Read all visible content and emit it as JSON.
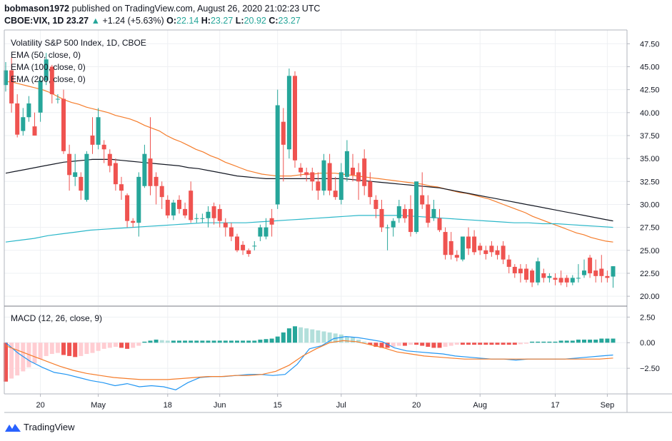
{
  "header": {
    "author": "bobmason1972",
    "published_text": "published on TradingView.com, August 26, 2020 21:02:23 UTC",
    "symbol": "CBOE:VIX, 1D",
    "last": "23.27",
    "change_arrow": "▲",
    "change": "+1.24 (+5.63%)",
    "o_label": "O:",
    "o_value": "22.14",
    "h_label": "H:",
    "h_value": "23.27",
    "l_label": "L:",
    "l_value": "20.92",
    "c_label": "C:",
    "c_value": "23.27"
  },
  "legend": {
    "title": "Volatility S&P 500 Index, 1D, CBOE",
    "ema50": "EMA (50, close, 0)",
    "ema100": "EMA (100, close, 0)",
    "ema200": "EMA (200, close, 0)",
    "macd": "MACD (12, 26, close, 9)"
  },
  "brand": {
    "label": "TradingView",
    "icon": "tradingview-logo-icon"
  },
  "colors": {
    "up": "#26a69a",
    "down": "#ef5350",
    "ema50": "#f57c2a",
    "ema100": "#131722",
    "ema200": "#2bb7c9",
    "macd_line": "#2196f3",
    "signal_line": "#f57c2a",
    "hist_pos_strong": "#26a69a",
    "hist_pos_weak": "#b2dfdb",
    "hist_neg_strong": "#ef5350",
    "hist_neg_weak": "#ffcdd2",
    "grid": "#eef0f3",
    "axis": "#b2b5be"
  },
  "chart_data": [
    {
      "type": "candlestick",
      "title": "Volatility S&P 500 Index, 1D, CBOE",
      "ylim": [
        19,
        49
      ],
      "y_ticks": [
        20.0,
        22.5,
        25.0,
        27.5,
        30.0,
        32.5,
        35.0,
        37.5,
        40.0,
        42.5,
        45.0,
        47.5
      ],
      "y_tick_labels": [
        "20.00",
        "22.50",
        "25.00",
        "27.50",
        "30.00",
        "32.50",
        "35.00",
        "37.50",
        "40.00",
        "42.50",
        "45.00",
        "47.50"
      ],
      "x_tick_labels": [
        "20",
        "May",
        "18",
        "Jun",
        "15",
        "Jul",
        "20",
        "Aug",
        "17",
        "Sep"
      ],
      "x_tick_bar_index": [
        6,
        16,
        28,
        37,
        47,
        58,
        71,
        82,
        95,
        104
      ],
      "grid": true,
      "candles": [
        [
          43,
          44.6,
          45.5,
          42.3
        ],
        [
          44.6,
          41,
          46,
          40
        ],
        [
          41,
          37.6,
          42,
          37.3
        ],
        [
          38,
          39.5,
          40.5,
          37.5
        ],
        [
          39.5,
          41,
          41.8,
          39
        ],
        [
          38.5,
          37.5,
          40,
          37.5
        ],
        [
          40,
          43.5,
          44,
          39
        ],
        [
          43.5,
          45.8,
          46.5,
          43
        ],
        [
          45,
          42,
          45.2,
          41
        ],
        [
          41.5,
          41.5,
          42,
          41
        ],
        [
          41.5,
          35.8,
          42.5,
          35.5
        ],
        [
          35.5,
          33.2,
          36.5,
          31.5
        ],
        [
          33,
          33.5,
          35.5,
          32
        ],
        [
          33,
          31.5,
          33.5,
          30.5
        ],
        [
          30.5,
          35.5,
          35.8,
          30.3
        ],
        [
          37.5,
          36.5,
          39.5,
          35.5
        ],
        [
          36.5,
          39.5,
          40.5,
          36
        ],
        [
          36.5,
          36,
          37,
          34.5
        ],
        [
          35.5,
          34.2,
          36,
          33.5
        ],
        [
          34.5,
          32.2,
          35,
          31.5
        ],
        [
          32.2,
          31.5,
          33,
          30.5
        ],
        [
          31,
          28.2,
          31.2,
          27.5
        ],
        [
          28.2,
          28,
          28.5,
          27.5
        ],
        [
          28,
          33,
          33.5,
          26.5
        ],
        [
          32,
          35.5,
          36.5,
          31.8
        ],
        [
          35,
          32,
          39.5,
          31
        ],
        [
          33,
          32,
          33.5,
          30
        ],
        [
          32,
          30.8,
          32.5,
          29.5
        ],
        [
          30.5,
          28.8,
          31,
          28.5
        ],
        [
          28.8,
          30.2,
          30.5,
          28.3
        ],
        [
          30.5,
          29.5,
          31,
          29
        ],
        [
          29.5,
          28.8,
          30.2,
          28.5
        ],
        [
          31.5,
          28.3,
          32.5,
          28
        ],
        [
          28.5,
          28.5,
          29,
          28
        ],
        [
          28.5,
          28.5,
          29,
          28
        ],
        [
          28.5,
          29.2,
          29.8,
          27.5
        ],
        [
          29.8,
          28.5,
          30.2,
          27.8
        ],
        [
          29.5,
          28.2,
          30,
          27.5
        ],
        [
          28,
          27.5,
          28.5,
          26.5
        ],
        [
          27.5,
          26.5,
          28,
          26
        ],
        [
          26.5,
          25,
          26.8,
          24.8
        ],
        [
          25.6,
          25,
          26,
          24.5
        ],
        [
          25,
          24.6,
          25.2,
          24.3
        ],
        [
          25.5,
          25.5,
          26,
          25
        ],
        [
          26.5,
          27.5,
          27.8,
          26
        ],
        [
          26.5,
          27.5,
          28.5,
          26.2
        ],
        [
          28.5,
          27.8,
          29.5,
          26.5
        ],
        [
          30,
          40.8,
          42.5,
          29.5
        ],
        [
          39,
          36.5,
          40.5,
          32.5
        ],
        [
          36,
          44,
          44.8,
          35
        ],
        [
          44,
          34.8,
          44.5,
          34
        ],
        [
          34,
          33.5,
          34.5,
          33
        ],
        [
          33.5,
          33.2,
          34,
          32.5
        ],
        [
          33.5,
          32.5,
          34,
          31.5
        ],
        [
          32.5,
          31.5,
          33.5,
          30.5
        ],
        [
          31.5,
          34.8,
          35.5,
          31
        ],
        [
          34.5,
          31.5,
          35.5,
          31
        ],
        [
          31.5,
          30.8,
          33,
          30.5
        ],
        [
          30.5,
          33.5,
          34.5,
          30
        ],
        [
          33,
          35.8,
          37,
          32.5
        ],
        [
          34,
          33.2,
          35.5,
          32.5
        ],
        [
          33.5,
          32.5,
          34.5,
          30.5
        ],
        [
          35,
          32,
          36,
          31
        ],
        [
          32.5,
          30.8,
          33.5,
          30
        ],
        [
          30.5,
          29.5,
          31,
          28.5
        ],
        [
          29.5,
          27.5,
          30.5,
          27
        ],
        [
          27.5,
          27.5,
          27.8,
          25
        ],
        [
          27.5,
          28.2,
          28.5,
          26.5
        ],
        [
          28.5,
          29.8,
          30.5,
          28
        ],
        [
          29.5,
          28.5,
          30,
          28
        ],
        [
          29.5,
          27,
          31,
          26.5
        ],
        [
          27,
          32.5,
          32.5,
          26.8
        ],
        [
          31,
          30,
          33.5,
          29.5
        ],
        [
          30,
          28,
          31,
          27.5
        ],
        [
          28.5,
          29.5,
          30.5,
          28.2
        ],
        [
          28.5,
          27.2,
          29.5,
          27
        ],
        [
          27,
          24.5,
          27.5,
          24
        ],
        [
          26,
          24.5,
          27,
          24
        ],
        [
          24.5,
          24.2,
          25,
          23.8
        ],
        [
          24,
          26.5,
          26.5,
          23.8
        ],
        [
          26.5,
          25.2,
          27.5,
          24.5
        ],
        [
          26.5,
          24.8,
          27.2,
          24.5
        ],
        [
          25.5,
          25,
          25.8,
          24.5
        ],
        [
          25,
          24.6,
          25.5,
          24
        ],
        [
          25.5,
          24.8,
          26,
          24.3
        ],
        [
          25,
          24.5,
          25.5,
          24
        ],
        [
          25.5,
          24,
          26,
          23.5
        ],
        [
          24,
          23.2,
          24.5,
          22.5
        ],
        [
          23.2,
          22.5,
          23.5,
          22
        ],
        [
          23,
          22.5,
          23.5,
          21.5
        ],
        [
          23,
          21.8,
          23.5,
          21.5
        ],
        [
          22.8,
          21.5,
          23,
          21
        ],
        [
          21.5,
          23.8,
          24.2,
          21.2
        ],
        [
          22.5,
          22,
          23,
          21.5
        ],
        [
          22,
          22.2,
          22.5,
          21.5
        ],
        [
          22,
          21.8,
          22.5,
          21.2
        ],
        [
          22,
          21.5,
          22.8,
          21.2
        ],
        [
          22,
          21.5,
          22.3,
          21
        ],
        [
          21.5,
          22,
          22.3,
          21.2
        ],
        [
          22,
          22,
          23.5,
          21.5
        ],
        [
          22.3,
          22.8,
          24,
          22
        ],
        [
          24.2,
          22.5,
          24.5,
          22
        ],
        [
          22.8,
          22.2,
          24,
          21.5
        ],
        [
          23,
          22.2,
          24.5,
          21.5
        ],
        [
          22.2,
          22,
          22.8,
          21.5
        ],
        [
          22.14,
          23.27,
          23.27,
          20.92
        ]
      ],
      "series": [
        {
          "name": "EMA (50, close, 0)",
          "values": [
            43.4,
            43.3,
            43.1,
            42.9,
            42.7,
            42.5,
            42.2,
            41.8,
            41.4,
            41.1,
            40.9,
            40.6,
            40.4,
            40.2,
            40,
            39.7,
            39.5,
            39.3,
            39,
            38.6,
            38.3,
            38,
            37.5,
            37.1,
            36.8,
            36.4,
            36,
            35.7,
            35.3,
            35,
            34.6,
            34.3,
            34,
            33.7,
            33.5,
            33.3,
            33.2,
            33.1,
            33.1,
            33.1,
            33.2,
            33.3,
            33.3,
            33.4,
            33.4,
            33.4,
            33.3,
            33.2,
            33.1,
            33,
            32.9,
            32.8,
            32.7,
            32.6,
            32.5,
            32.4,
            32.3,
            32.2,
            32,
            31.9,
            31.7,
            31.5,
            31.3,
            31.2,
            31,
            30.8,
            30.6,
            30.3,
            30,
            29.7,
            29.4,
            29.1,
            28.7,
            28.4,
            28.1,
            27.8,
            27.5,
            27.2,
            26.9,
            26.7,
            26.4,
            26.2,
            26,
            25.9
          ]
        },
        {
          "name": "EMA (100, close, 0)",
          "values": [
            33.4,
            33.6,
            33.8,
            34,
            34.2,
            34.4,
            34.6,
            34.7,
            34.8,
            34.9,
            34.9,
            34.9,
            34.8,
            34.7,
            34.6,
            34.5,
            34.4,
            34.3,
            34.2,
            34,
            33.9,
            33.7,
            33.5,
            33.3,
            33.1,
            33,
            32.9,
            32.8,
            32.8,
            32.8,
            32.8,
            32.8,
            32.8,
            32.8,
            32.8,
            32.8,
            32.7,
            32.6,
            32.5,
            32.4,
            32.3,
            32.2,
            32.1,
            32,
            31.9,
            31.8,
            31.6,
            31.4,
            31.2,
            31,
            30.8,
            30.6,
            30.4,
            30.2,
            30,
            29.8,
            29.6,
            29.4,
            29.2,
            29,
            28.8,
            28.6,
            28.4,
            28.2
          ]
        },
        {
          "name": "EMA (200, close, 0)",
          "values": [
            25.9,
            26.1,
            26.3,
            26.6,
            26.8,
            27,
            27.2,
            27.3,
            27.4,
            27.5,
            27.6,
            27.7,
            27.8,
            27.9,
            28,
            28,
            28,
            28,
            28.1,
            28.2,
            28.3,
            28.4,
            28.5,
            28.6,
            28.7,
            28.8,
            28.8,
            28.8,
            28.8,
            28.7,
            28.6,
            28.5,
            28.4,
            28.3,
            28.2,
            28.1,
            28,
            28,
            27.9,
            27.9,
            27.8,
            27.7,
            27.6,
            27.5
          ]
        }
      ]
    },
    {
      "type": "bar",
      "title": "MACD (12, 26, close, 9)",
      "ylim": [
        -5,
        3.5
      ],
      "y_ticks": [
        2.5,
        0,
        -2.5
      ],
      "y_tick_labels": [
        "2.50",
        "0.00",
        "−2.50"
      ],
      "histogram": [
        -3.8,
        -3.5,
        -3.2,
        -2.8,
        -2.4,
        -2,
        -1.6,
        -1.3,
        -1.1,
        -1,
        -1.2,
        -1.3,
        -1.4,
        -1.3,
        -1.1,
        -1,
        -0.8,
        -0.6,
        -0.5,
        -0.4,
        -0.5,
        -0.6,
        -0.5,
        -0.3,
        0.1,
        0.2,
        0.3,
        0.25,
        0.2,
        0.2,
        0.2,
        0.2,
        0.2,
        0.2,
        0.2,
        0.2,
        0.2,
        0.2,
        0.2,
        0.2,
        0.2,
        0.2,
        0.2,
        0.2,
        0.3,
        0.35,
        0.4,
        0.6,
        1,
        1.4,
        1.6,
        1.5,
        1.4,
        1.3,
        1.2,
        1.1,
        1,
        0.9,
        0.8,
        0.6,
        0.5,
        0.3,
        0.1,
        -0.2,
        -0.4,
        -0.5,
        -0.5,
        -0.4,
        -0.3,
        -0.3,
        -0.2,
        -0.2,
        -0.3,
        -0.4,
        -0.5,
        -0.5,
        -0.4,
        -0.3,
        -0.2,
        -0.2,
        -0.2,
        -0.2,
        -0.2,
        -0.2,
        -0.2,
        -0.2,
        -0.2,
        -0.2,
        -0.2,
        -0.15,
        -0.1,
        0.1,
        0.1,
        0.1,
        0.1,
        0.1,
        0.2,
        0.2,
        0.2,
        0.3,
        0.3,
        0.3,
        0.3,
        0.4,
        0.4,
        0.4
      ],
      "series": [
        {
          "name": "MACD",
          "values": [
            0,
            -1,
            -1.8,
            -2.4,
            -2.9,
            -3.1,
            -3.4,
            -3.7,
            -3.9,
            -4.2,
            -4,
            -4.3,
            -4.2,
            -4.3,
            -4.6,
            -3.9,
            -3.4,
            -3.3,
            -3.3,
            -3.2,
            -3.1,
            -3.1,
            -3.2,
            -3.1,
            -2.1,
            -0.6,
            -0.3,
            0.4,
            0.6,
            0.5,
            0.3,
            0.1,
            -0.5,
            -0.8,
            -0.9,
            -1,
            -1.1,
            -1.3,
            -1.4,
            -1.5,
            -1.6,
            -1.6,
            -1.7,
            -1.6,
            -1.6,
            -1.6,
            -1.6,
            -1.5,
            -1.4,
            -1.3,
            -1.2
          ]
        },
        {
          "name": "Signal",
          "values": [
            -0.3,
            -0.8,
            -1.3,
            -1.8,
            -2.3,
            -2.7,
            -3,
            -3.2,
            -3.4,
            -3.5,
            -3.6,
            -3.6,
            -3.6,
            -3.5,
            -3.4,
            -3.3,
            -3.3,
            -3.2,
            -3.2,
            -3.1,
            -2.8,
            -2.2,
            -1.3,
            -0.6,
            0,
            0.2,
            0.1,
            -0.2,
            -0.5,
            -0.9,
            -1.1,
            -1.3,
            -1.4,
            -1.5,
            -1.6,
            -1.6,
            -1.6,
            -1.6,
            -1.6,
            -1.6,
            -1.6,
            -1.6,
            -1.6,
            -1.6,
            -1.6,
            -1.5
          ]
        }
      ]
    }
  ]
}
